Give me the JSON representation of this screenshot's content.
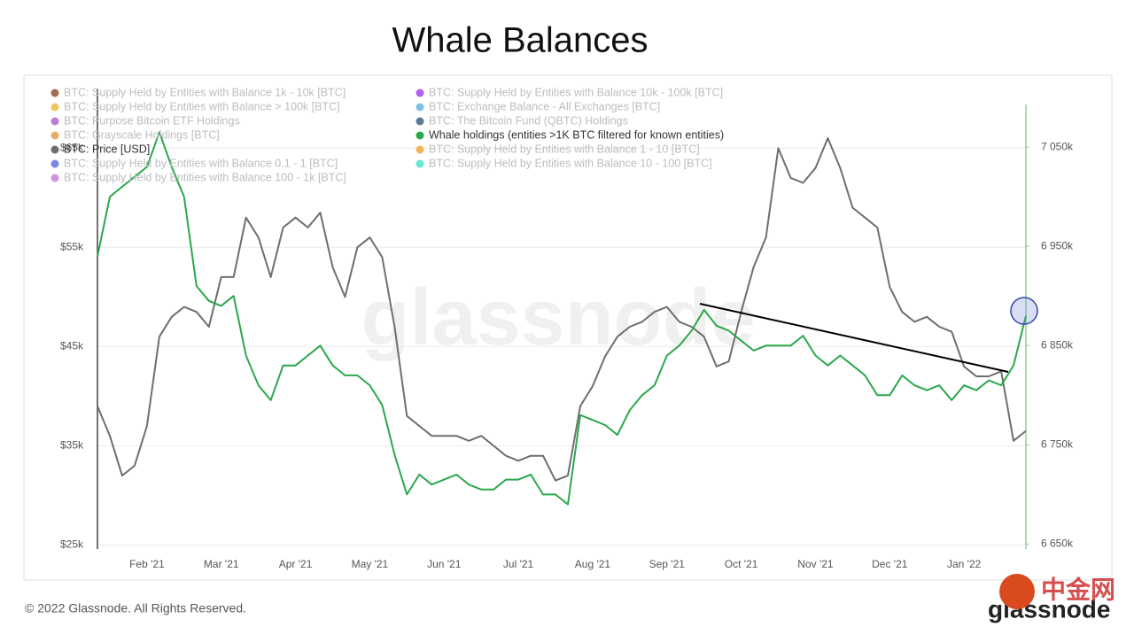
{
  "chart_data": {
    "type": "line",
    "title": "Whale Balances",
    "watermark": "glassnode",
    "footer": "© 2022 Glassnode. All Rights Reserved.",
    "logo": "glassnode",
    "logo_mark": "中金网",
    "categories": [
      null,
      null,
      null,
      null,
      "Feb '21",
      null,
      null,
      null,
      null,
      null,
      "Mar '21",
      null,
      null,
      null,
      null,
      null,
      "Apr '21",
      null,
      null,
      null,
      null,
      null,
      "May '21",
      null,
      null,
      null,
      null,
      null,
      "Jun '21",
      null,
      null,
      null,
      null,
      null,
      "Jul '21",
      null,
      null,
      null,
      null,
      null,
      "Aug '21",
      null,
      null,
      null,
      null,
      null,
      "Sep '21",
      null,
      null,
      null,
      null,
      null,
      "Oct '21",
      null,
      null,
      null,
      null,
      null,
      "Nov '21",
      null,
      null,
      null,
      null,
      null,
      "Dec '21",
      null,
      null,
      null,
      null,
      null,
      "Jan '22",
      null,
      null,
      null,
      null,
      null
    ],
    "ylim": [
      24.6,
      71
    ],
    "yticks": [
      {
        "value": 25,
        "label": "$25k"
      },
      {
        "value": 35,
        "label": "$35k"
      },
      {
        "value": 45,
        "label": "$45k"
      },
      {
        "value": 55,
        "label": "$55k"
      },
      {
        "value": 65,
        "label": "$65k"
      }
    ],
    "y2lim": [
      6645,
      7109
    ],
    "y2ticks": [
      {
        "value": 6650,
        "label": "6 650k"
      },
      {
        "value": 6750,
        "label": "6 750k"
      },
      {
        "value": 6850,
        "label": "6 850k"
      },
      {
        "value": 6950,
        "label": "6 950k"
      },
      {
        "value": 7050,
        "label": "7 050k"
      }
    ],
    "grid": true,
    "series": [
      {
        "name": "BTC: Supply Held by Entities with Balance 1k - 10k [BTC]",
        "color": "#8b4a2b",
        "hidden": true
      },
      {
        "name": "BTC: Supply Held by Entities with Balance > 100k [BTC]",
        "color": "#e8b93a",
        "hidden": true
      },
      {
        "name": "BTC: Purpose Bitcoin ETF Holdings",
        "color": "#b05ac8",
        "hidden": true
      },
      {
        "name": "BTC: Grayscale Holdings [BTC]",
        "color": "#e09a40",
        "hidden": true
      },
      {
        "name": "BTC: Price [USD]",
        "color": "#6e6e6e",
        "hidden": false,
        "axis": "y",
        "values": [
          39,
          36,
          32,
          33,
          37,
          46,
          48,
          49,
          48.5,
          47,
          52,
          52,
          58,
          56,
          52,
          57,
          58,
          57,
          58.5,
          53,
          50,
          55,
          56,
          54,
          47,
          38,
          37,
          36,
          36,
          36,
          35.5,
          36,
          35,
          34,
          33.5,
          34,
          34,
          31.5,
          32,
          39,
          41,
          44,
          46,
          47,
          47.5,
          48.5,
          49,
          47.5,
          47,
          46,
          43,
          43.5,
          48.5,
          53,
          56,
          65,
          62,
          61.5,
          63,
          66,
          63,
          59,
          58,
          57,
          51,
          48.5,
          47.5,
          48,
          47,
          46.5,
          43,
          42,
          42,
          42.5,
          35.5,
          36.5
        ]
      },
      {
        "name": "BTC: Supply Held by Entities with Balance 0.1 - 1 [BTC]",
        "color": "#5a6ad8",
        "hidden": true
      },
      {
        "name": "BTC: Supply Held by Entities with Balance 100 - 1k [BTC]",
        "color": "#c879d8",
        "hidden": true
      },
      {
        "name": "BTC: Supply Held by Entities with Balance 10k - 100k [BTC]",
        "color": "#9b3be8",
        "hidden": true
      },
      {
        "name": "BTC: Exchange Balance - All Exchanges [BTC]",
        "color": "#5ab0e0",
        "hidden": true
      },
      {
        "name": "BTC: The Bitcoin Fund (QBTC) Holdings",
        "color": "#2f5a7a",
        "hidden": true
      },
      {
        "name": "Whale holdings (entities >1K BTC filtered for known entities)",
        "color": "#2aa84a",
        "hidden": false,
        "axis": "y2",
        "values": [
          6940,
          7000,
          7010,
          7020,
          7030,
          7065,
          7030,
          7000,
          6910,
          6895,
          6890,
          6900,
          6840,
          6810,
          6795,
          6830,
          6830,
          6840,
          6850,
          6830,
          6820,
          6820,
          6810,
          6790,
          6740,
          6700,
          6720,
          6710,
          6715,
          6720,
          6710,
          6705,
          6705,
          6715,
          6715,
          6720,
          6700,
          6700,
          6690,
          6780,
          6775,
          6770,
          6760,
          6785,
          6800,
          6810,
          6840,
          6850,
          6865,
          6886,
          6870,
          6865,
          6855,
          6845,
          6850,
          6850,
          6850,
          6860,
          6840,
          6830,
          6840,
          6830,
          6820,
          6800,
          6800,
          6820,
          6810,
          6805,
          6810,
          6795,
          6810,
          6805,
          6815,
          6810,
          6830,
          6880
        ]
      },
      {
        "name": "BTC: Supply Held by Entities with Balance 1 - 10 [BTC]",
        "color": "#f0a030",
        "hidden": true
      },
      {
        "name": "BTC: Supply Held by Entities with Balance 10 - 100 [BTC]",
        "color": "#40e0c8",
        "hidden": true
      }
    ]
  }
}
